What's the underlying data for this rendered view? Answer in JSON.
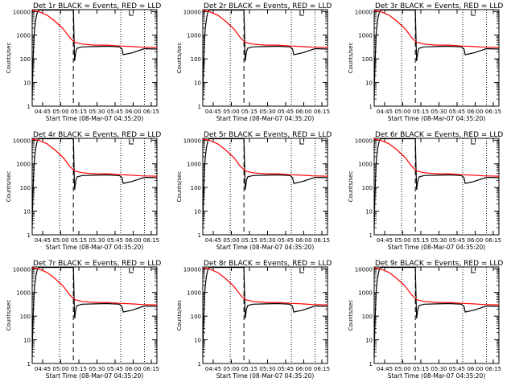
{
  "chart_data": [
    {
      "type": "line",
      "title": "Det 1r BLACK = Events, RED = LLD",
      "xlabel": "Start Time (08-Mar-07 04:35:20)",
      "ylabel": "Counts/sec",
      "x_ticks": [
        "04:45",
        "05:00",
        "05:15",
        "05:30",
        "05:45",
        "06:00",
        "06:15"
      ],
      "y_ticks": [
        "1",
        "10",
        "100",
        "1000",
        "10000"
      ],
      "ylim": [
        1,
        12000
      ],
      "xlim": [
        0,
        100
      ],
      "vlines_dotted": [
        22,
        71,
        90
      ],
      "vline_dashed": 33,
      "series": [
        {
          "name": "LLD",
          "color": "#ff0000",
          "x": [
            0,
            5,
            12,
            18,
            25,
            30,
            34,
            40,
            50,
            60,
            70,
            80,
            88,
            100
          ],
          "y": [
            11000,
            10000,
            7000,
            4000,
            1800,
            800,
            500,
            420,
            380,
            380,
            350,
            330,
            310,
            300
          ]
        },
        {
          "name": "Events",
          "color": "#000000",
          "x": [
            0,
            0.5,
            1,
            1.5,
            2,
            3,
            4,
            5,
            6,
            8,
            10,
            33,
            34,
            35,
            36,
            40,
            50,
            60,
            70,
            72,
            73,
            80,
            90,
            100
          ],
          "y": [
            2,
            30,
            200,
            800,
            2000,
            5000,
            9000,
            11000,
            11500,
            11500,
            11500,
            11500,
            80,
            200,
            280,
            320,
            330,
            340,
            320,
            260,
            150,
            180,
            270,
            260
          ]
        }
      ]
    },
    {
      "type": "line",
      "title": "Det 2r BLACK = Events, RED = LLD",
      "xlabel": "Start Time (08-Mar-07 04:35:20)",
      "ylabel": "Counts/sec",
      "x_ticks": [
        "04:45",
        "05:00",
        "05:15",
        "05:30",
        "05:45",
        "06:00",
        "06:15"
      ],
      "y_ticks": [
        "1",
        "10",
        "100",
        "1000",
        "10000"
      ],
      "ylim": [
        1,
        12000
      ],
      "xlim": [
        0,
        100
      ],
      "vlines_dotted": [
        22,
        71,
        90
      ],
      "vline_dashed": 33,
      "series": [
        {
          "name": "LLD",
          "color": "#ff0000",
          "x": [
            0,
            5,
            12,
            18,
            25,
            30,
            34,
            40,
            50,
            60,
            70,
            80,
            88,
            100
          ],
          "y": [
            11000,
            10000,
            7000,
            4000,
            1800,
            800,
            500,
            420,
            380,
            380,
            350,
            330,
            310,
            300
          ]
        },
        {
          "name": "Events",
          "color": "#000000",
          "x": [
            0,
            0.5,
            1,
            1.5,
            2,
            3,
            4,
            5,
            6,
            8,
            10,
            33,
            34,
            35,
            36,
            40,
            50,
            60,
            70,
            72,
            73,
            80,
            90,
            100
          ],
          "y": [
            2,
            30,
            200,
            800,
            2000,
            5000,
            9000,
            11000,
            11500,
            11500,
            11500,
            11500,
            80,
            200,
            280,
            320,
            330,
            340,
            320,
            260,
            150,
            180,
            270,
            260
          ]
        }
      ]
    },
    {
      "type": "line",
      "title": "Det 3r BLACK = Events, RED = LLD",
      "xlabel": "Start Time (08-Mar-07 04:35:20)",
      "ylabel": "Counts/sec",
      "x_ticks": [
        "04:45",
        "05:00",
        "05:15",
        "05:30",
        "05:45",
        "06:00",
        "06:15"
      ],
      "y_ticks": [
        "1",
        "10",
        "100",
        "1000",
        "10000"
      ],
      "ylim": [
        1,
        12000
      ],
      "xlim": [
        0,
        100
      ],
      "vlines_dotted": [
        22,
        71,
        90
      ],
      "vline_dashed": 33,
      "series": [
        {
          "name": "LLD",
          "color": "#ff0000",
          "x": [
            0,
            5,
            12,
            18,
            25,
            30,
            34,
            40,
            50,
            60,
            70,
            80,
            88,
            100
          ],
          "y": [
            11000,
            10000,
            7000,
            4000,
            1800,
            800,
            500,
            420,
            380,
            380,
            350,
            330,
            310,
            300
          ]
        },
        {
          "name": "Events",
          "color": "#000000",
          "x": [
            0,
            0.5,
            1,
            1.5,
            2,
            3,
            4,
            5,
            6,
            8,
            10,
            33,
            34,
            35,
            36,
            40,
            50,
            60,
            70,
            72,
            73,
            80,
            90,
            100
          ],
          "y": [
            2,
            30,
            200,
            800,
            2000,
            5000,
            9000,
            11000,
            11500,
            11500,
            11500,
            11500,
            80,
            200,
            280,
            320,
            330,
            340,
            320,
            260,
            150,
            180,
            270,
            260
          ]
        }
      ]
    },
    {
      "type": "line",
      "title": "Det 4r BLACK = Events, RED = LLD",
      "xlabel": "Start Time (08-Mar-07 04:35:20)",
      "ylabel": "Counts/sec",
      "x_ticks": [
        "04:45",
        "05:00",
        "05:15",
        "05:30",
        "05:45",
        "06:00",
        "06:15"
      ],
      "y_ticks": [
        "1",
        "10",
        "100",
        "1000",
        "10000"
      ],
      "ylim": [
        1,
        12000
      ],
      "xlim": [
        0,
        100
      ],
      "vlines_dotted": [
        22,
        71,
        90
      ],
      "vline_dashed": 33,
      "series": [
        {
          "name": "LLD",
          "color": "#ff0000",
          "x": [
            0,
            5,
            12,
            18,
            25,
            30,
            34,
            40,
            50,
            60,
            70,
            80,
            88,
            100
          ],
          "y": [
            11000,
            10000,
            7000,
            4000,
            1800,
            800,
            500,
            420,
            380,
            380,
            350,
            330,
            310,
            300
          ]
        },
        {
          "name": "Events",
          "color": "#000000",
          "x": [
            0,
            0.5,
            1,
            1.5,
            2,
            3,
            4,
            5,
            6,
            8,
            10,
            33,
            34,
            35,
            36,
            40,
            50,
            60,
            70,
            72,
            73,
            80,
            90,
            100
          ],
          "y": [
            2,
            30,
            200,
            800,
            2000,
            5000,
            9000,
            11000,
            11500,
            11500,
            11500,
            11500,
            80,
            200,
            280,
            320,
            330,
            340,
            320,
            260,
            150,
            180,
            270,
            260
          ]
        }
      ]
    },
    {
      "type": "line",
      "title": "Det 5r BLACK = Events, RED = LLD",
      "xlabel": "Start Time (08-Mar-07 04:35:20)",
      "ylabel": "Counts/sec",
      "x_ticks": [
        "04:45",
        "05:00",
        "05:15",
        "05:30",
        "05:45",
        "06:00",
        "06:15"
      ],
      "y_ticks": [
        "1",
        "10",
        "100",
        "1000",
        "10000"
      ],
      "ylim": [
        1,
        12000
      ],
      "xlim": [
        0,
        100
      ],
      "vlines_dotted": [
        22,
        71,
        90
      ],
      "vline_dashed": 33,
      "series": [
        {
          "name": "LLD",
          "color": "#ff0000",
          "x": [
            0,
            5,
            12,
            18,
            25,
            30,
            34,
            40,
            50,
            60,
            70,
            80,
            88,
            100
          ],
          "y": [
            11000,
            10000,
            7000,
            4000,
            1800,
            800,
            500,
            420,
            380,
            380,
            350,
            330,
            310,
            300
          ]
        },
        {
          "name": "Events",
          "color": "#000000",
          "x": [
            0,
            0.5,
            1,
            1.5,
            2,
            3,
            4,
            5,
            6,
            8,
            10,
            33,
            34,
            35,
            36,
            40,
            50,
            60,
            70,
            72,
            73,
            80,
            90,
            100
          ],
          "y": [
            2,
            30,
            200,
            800,
            2000,
            5000,
            9000,
            11000,
            11500,
            11500,
            11500,
            11500,
            80,
            200,
            280,
            320,
            330,
            340,
            320,
            260,
            150,
            180,
            270,
            260
          ]
        }
      ]
    },
    {
      "type": "line",
      "title": "Det 6r BLACK = Events, RED = LLD",
      "xlabel": "Start Time (08-Mar-07 04:35:20)",
      "ylabel": "Counts/sec",
      "x_ticks": [
        "04:45",
        "05:00",
        "05:15",
        "05:30",
        "05:45",
        "06:00",
        "06:15"
      ],
      "y_ticks": [
        "1",
        "10",
        "100",
        "1000",
        "10000"
      ],
      "ylim": [
        1,
        12000
      ],
      "xlim": [
        0,
        100
      ],
      "vlines_dotted": [
        22,
        71,
        90
      ],
      "vline_dashed": 33,
      "series": [
        {
          "name": "LLD",
          "color": "#ff0000",
          "x": [
            0,
            5,
            12,
            18,
            25,
            30,
            34,
            40,
            50,
            60,
            70,
            80,
            88,
            100
          ],
          "y": [
            11000,
            10000,
            7000,
            4000,
            1800,
            800,
            500,
            420,
            380,
            380,
            350,
            330,
            310,
            300
          ]
        },
        {
          "name": "Events",
          "color": "#000000",
          "x": [
            0,
            0.5,
            1,
            1.5,
            2,
            3,
            4,
            5,
            6,
            8,
            10,
            33,
            34,
            35,
            36,
            40,
            50,
            60,
            70,
            72,
            73,
            80,
            90,
            100
          ],
          "y": [
            2,
            30,
            200,
            800,
            2000,
            5000,
            9000,
            11000,
            11500,
            11500,
            11500,
            11500,
            80,
            200,
            280,
            320,
            330,
            340,
            320,
            260,
            150,
            180,
            270,
            260
          ]
        }
      ]
    },
    {
      "type": "line",
      "title": "Det 7r BLACK = Events, RED = LLD",
      "xlabel": "Start Time (08-Mar-07 04:35:20)",
      "ylabel": "Counts/sec",
      "x_ticks": [
        "04:45",
        "05:00",
        "05:15",
        "05:30",
        "05:45",
        "06:00",
        "06:15"
      ],
      "y_ticks": [
        "1",
        "10",
        "100",
        "1000",
        "10000"
      ],
      "ylim": [
        1,
        12000
      ],
      "xlim": [
        0,
        100
      ],
      "vlines_dotted": [
        22,
        71,
        90
      ],
      "vline_dashed": 33,
      "series": [
        {
          "name": "LLD",
          "color": "#ff0000",
          "x": [
            0,
            5,
            12,
            18,
            25,
            30,
            34,
            40,
            50,
            60,
            70,
            80,
            88,
            100
          ],
          "y": [
            11000,
            10000,
            7000,
            4000,
            1800,
            800,
            500,
            420,
            380,
            380,
            350,
            330,
            310,
            300
          ]
        },
        {
          "name": "Events",
          "color": "#000000",
          "x": [
            0,
            0.5,
            1,
            1.5,
            2,
            3,
            4,
            5,
            6,
            8,
            10,
            33,
            34,
            35,
            36,
            40,
            50,
            60,
            70,
            72,
            73,
            80,
            90,
            100
          ],
          "y": [
            2,
            30,
            200,
            800,
            2000,
            5000,
            9000,
            11000,
            11500,
            11500,
            11500,
            11500,
            80,
            200,
            280,
            320,
            330,
            340,
            320,
            260,
            150,
            180,
            270,
            260
          ]
        }
      ]
    },
    {
      "type": "line",
      "title": "Det 8r BLACK = Events, RED = LLD",
      "xlabel": "Start Time (08-Mar-07 04:35:20)",
      "ylabel": "Counts/sec",
      "x_ticks": [
        "04:45",
        "05:00",
        "05:15",
        "05:30",
        "05:45",
        "06:00",
        "06:15"
      ],
      "y_ticks": [
        "1",
        "10",
        "100",
        "1000",
        "10000"
      ],
      "ylim": [
        1,
        12000
      ],
      "xlim": [
        0,
        100
      ],
      "vlines_dotted": [
        22,
        71,
        90
      ],
      "vline_dashed": 33,
      "series": [
        {
          "name": "LLD",
          "color": "#ff0000",
          "x": [
            0,
            5,
            12,
            18,
            25,
            30,
            34,
            40,
            50,
            60,
            70,
            80,
            88,
            100
          ],
          "y": [
            11000,
            10000,
            7000,
            4000,
            1800,
            800,
            500,
            420,
            380,
            380,
            350,
            330,
            310,
            300
          ]
        },
        {
          "name": "Events",
          "color": "#000000",
          "x": [
            0,
            0.5,
            1,
            1.5,
            2,
            3,
            4,
            5,
            6,
            8,
            10,
            33,
            34,
            35,
            36,
            40,
            50,
            60,
            70,
            72,
            73,
            80,
            90,
            100
          ],
          "y": [
            2,
            30,
            200,
            800,
            2000,
            5000,
            9000,
            11000,
            11500,
            11500,
            11500,
            11500,
            80,
            200,
            280,
            320,
            330,
            340,
            320,
            260,
            150,
            180,
            270,
            260
          ]
        }
      ]
    },
    {
      "type": "line",
      "title": "Det 9r BLACK = Events, RED = LLD",
      "xlabel": "Start Time (08-Mar-07 04:35:20)",
      "ylabel": "Counts/sec",
      "x_ticks": [
        "04:45",
        "05:00",
        "05:15",
        "05:30",
        "05:45",
        "06:00",
        "06:15"
      ],
      "y_ticks": [
        "1",
        "10",
        "100",
        "1000",
        "10000"
      ],
      "ylim": [
        1,
        12000
      ],
      "xlim": [
        0,
        100
      ],
      "vlines_dotted": [
        22,
        71,
        90
      ],
      "vline_dashed": 33,
      "series": [
        {
          "name": "LLD",
          "color": "#ff0000",
          "x": [
            0,
            5,
            12,
            18,
            25,
            30,
            34,
            40,
            50,
            60,
            70,
            80,
            88,
            100
          ],
          "y": [
            11000,
            10000,
            7000,
            4000,
            1800,
            800,
            500,
            420,
            380,
            380,
            350,
            330,
            310,
            300
          ]
        },
        {
          "name": "Events",
          "color": "#000000",
          "x": [
            0,
            0.5,
            1,
            1.5,
            2,
            3,
            4,
            5,
            6,
            8,
            10,
            33,
            34,
            35,
            36,
            40,
            50,
            60,
            70,
            72,
            73,
            80,
            90,
            100
          ],
          "y": [
            2,
            30,
            200,
            800,
            2000,
            5000,
            9000,
            11000,
            11500,
            11500,
            11500,
            11500,
            80,
            200,
            280,
            320,
            330,
            340,
            320,
            260,
            150,
            180,
            270,
            260
          ]
        }
      ]
    }
  ]
}
